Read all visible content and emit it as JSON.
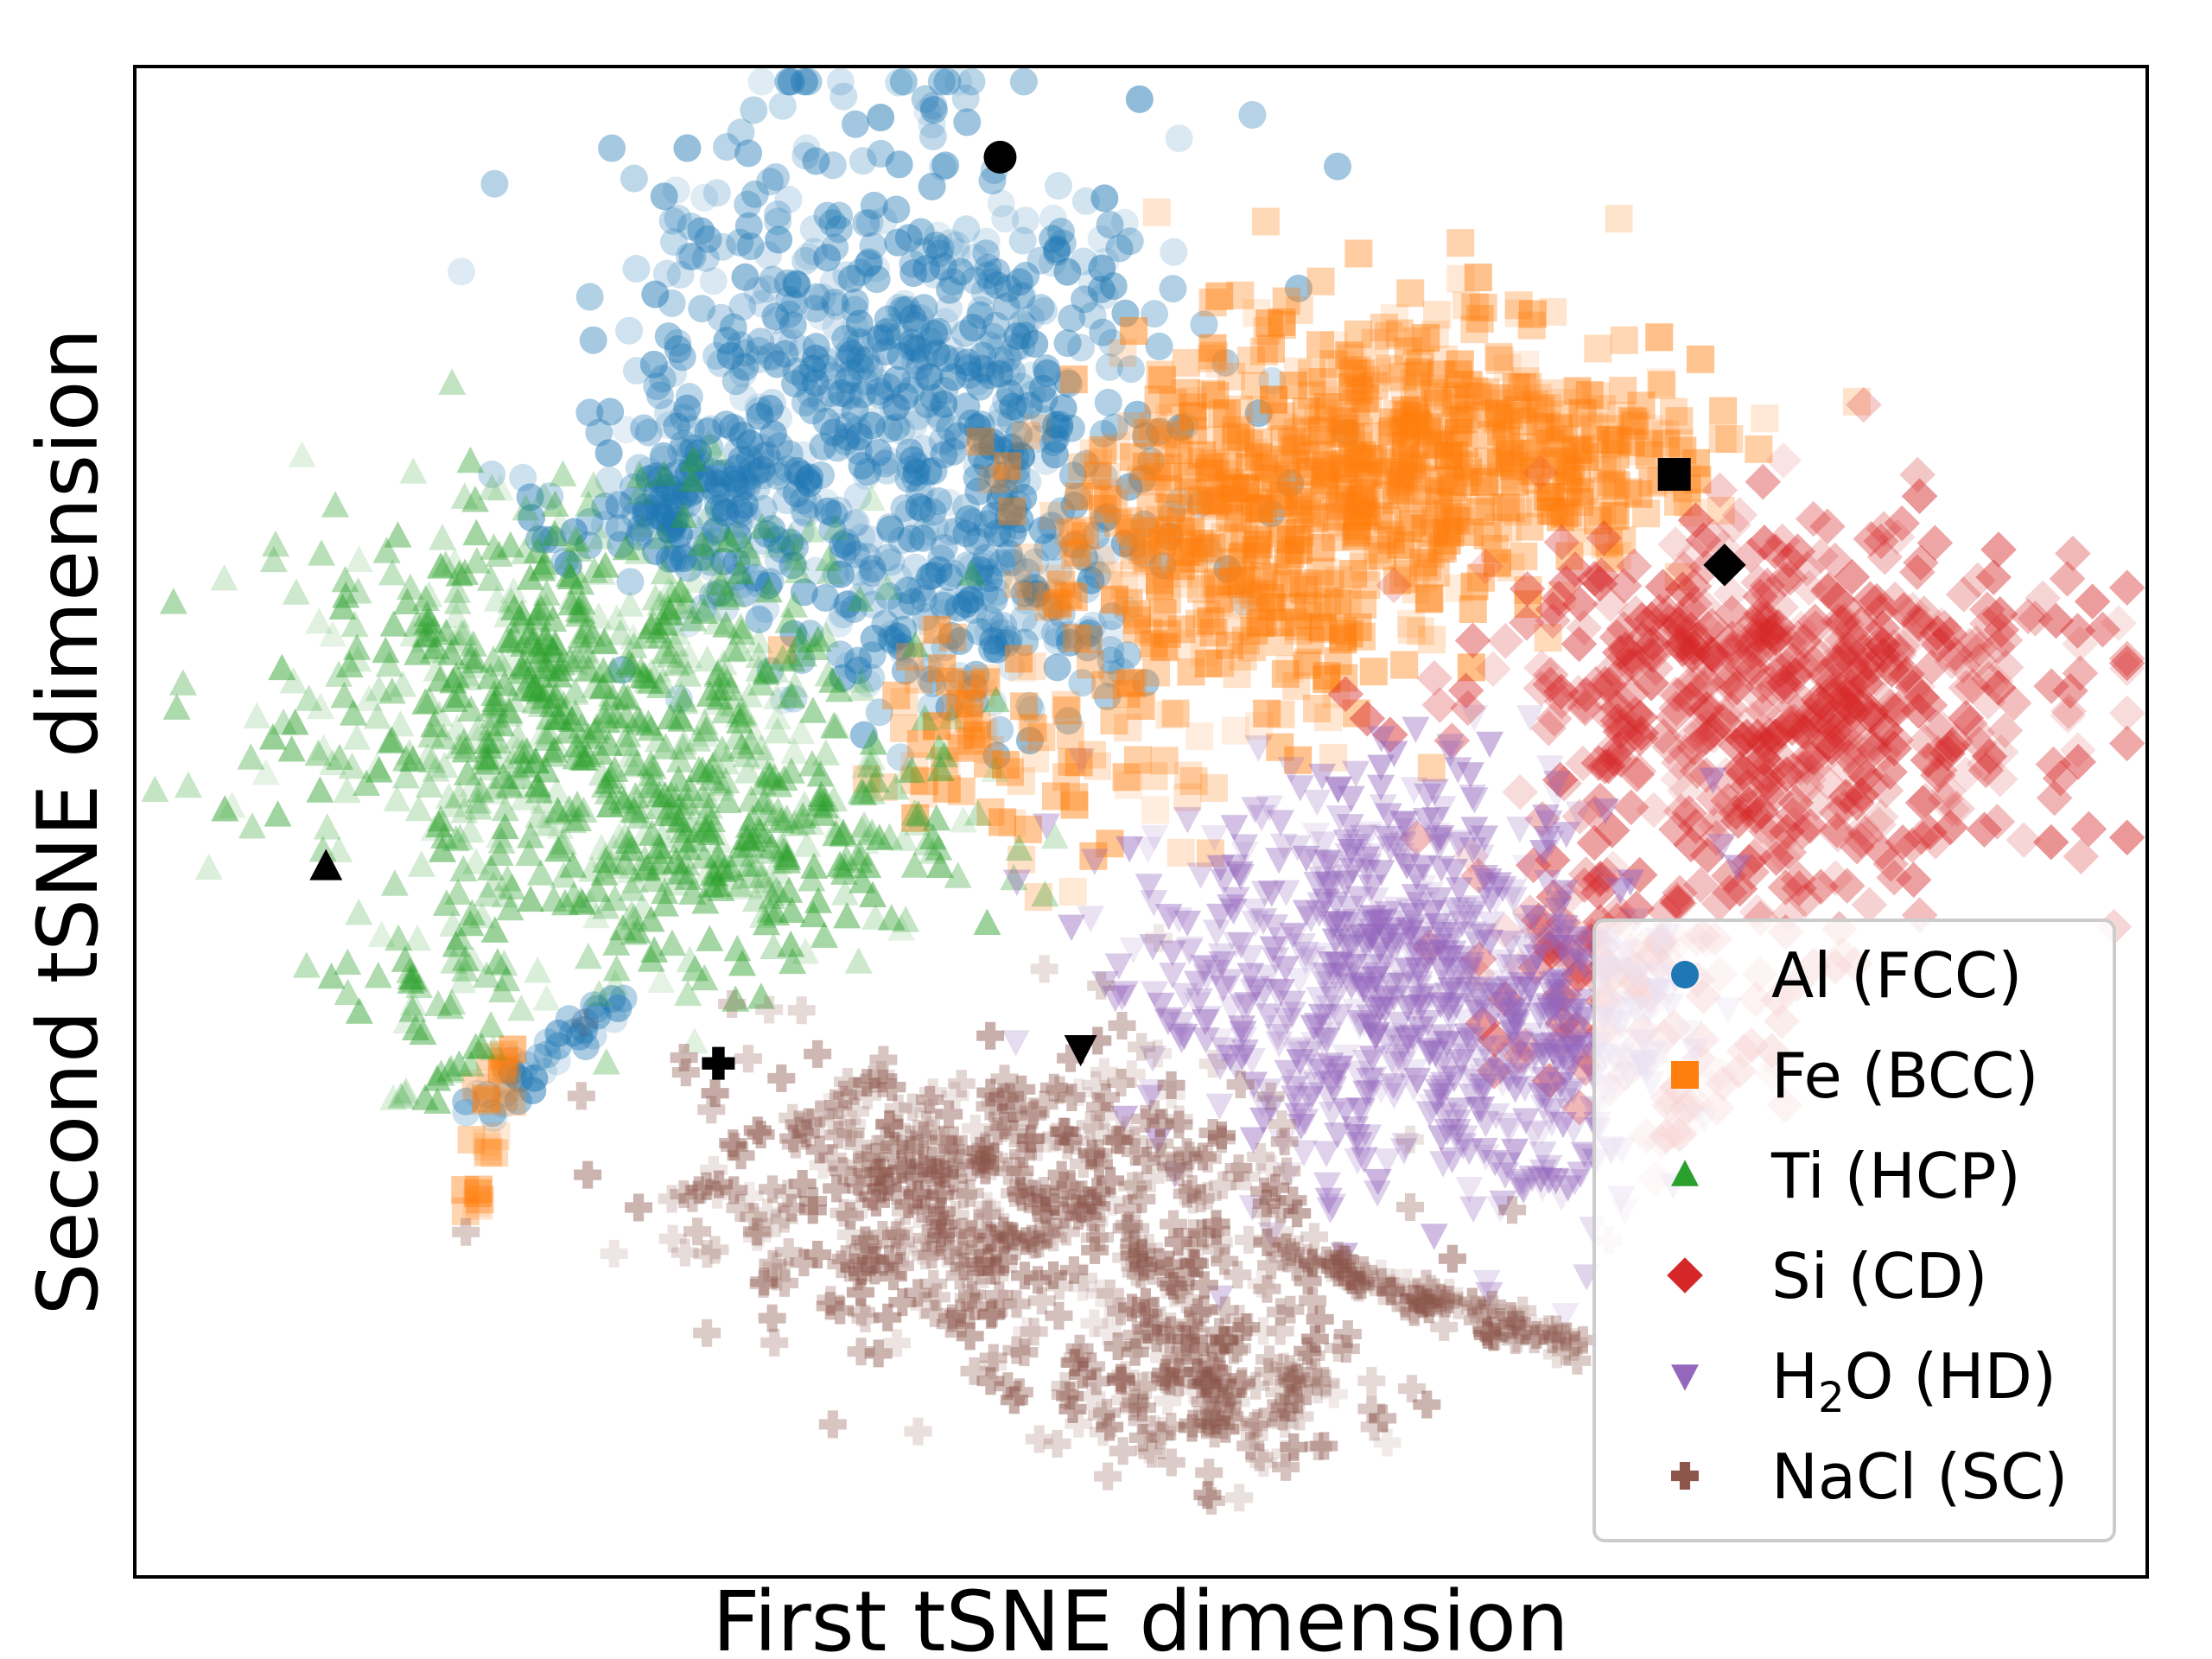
{
  "chart_data": {
    "type": "scatter",
    "title": "",
    "xlabel": "First tSNE dimension",
    "ylabel": "Second tSNE dimension",
    "xlim": [
      0,
      100
    ],
    "ylim": [
      0,
      100
    ],
    "xticks": "none",
    "yticks": "none",
    "grid": false,
    "legend_position": "bottom-right",
    "series": [
      {
        "name": "Al (FCC)",
        "label_main": "Al (FCC)",
        "label_pre": "",
        "label_sub": "",
        "label_post": "",
        "marker": "circle",
        "color": "#1f77b4",
        "clusters": [
          {
            "cx": 38,
            "cy": 79,
            "sx": 7,
            "sy": 9,
            "n": 700
          },
          {
            "cx": 28,
            "cy": 71,
            "sx": 3,
            "sy": 3,
            "n": 150
          },
          {
            "cx": 42,
            "cy": 64,
            "sx": 4,
            "sy": 3,
            "n": 120
          }
        ],
        "trail": {
          "from": [
            17,
            31
          ],
          "to": [
            24,
            38
          ],
          "n": 40
        },
        "representative": {
          "x": 43,
          "y": 94
        }
      },
      {
        "name": "Fe (BCC)",
        "label_main": "Fe (BCC)",
        "label_pre": "",
        "label_sub": "",
        "label_post": "",
        "marker": "square",
        "color": "#ff7f0e",
        "clusters": [
          {
            "cx": 56,
            "cy": 69,
            "sx": 6,
            "sy": 6,
            "n": 450
          },
          {
            "cx": 63,
            "cy": 76,
            "sx": 6,
            "sy": 5,
            "n": 250
          },
          {
            "cx": 71,
            "cy": 74,
            "sx": 5,
            "sy": 3,
            "n": 150
          },
          {
            "cx": 43,
            "cy": 55,
            "sx": 5,
            "sy": 4,
            "n": 90
          }
        ],
        "trail": {
          "from": [
            17,
            24
          ],
          "to": [
            18,
            35
          ],
          "n": 30
        },
        "representative": {
          "x": 76.5,
          "y": 73
        }
      },
      {
        "name": "Ti (HCP)",
        "label_main": "Ti (HCP)",
        "label_pre": "",
        "label_sub": "",
        "label_post": "",
        "marker": "triangle-up",
        "color": "#2ca02c",
        "clusters": [
          {
            "cx": 22,
            "cy": 58,
            "sx": 7,
            "sy": 7,
            "n": 650
          },
          {
            "cx": 30,
            "cy": 48,
            "sx": 6,
            "sy": 4,
            "n": 250
          },
          {
            "cx": 15,
            "cy": 40,
            "sx": 3,
            "sy": 2,
            "n": 40
          }
        ],
        "trail": {
          "from": [
            12,
            30
          ],
          "to": [
            18,
            35
          ],
          "n": 15
        },
        "representative": {
          "x": 9.5,
          "y": 47
        }
      },
      {
        "name": "Si (CD)",
        "label_main": "Si (CD)",
        "label_pre": "",
        "label_sub": "",
        "label_post": "",
        "marker": "diamond",
        "color": "#d62728",
        "clusters": [
          {
            "cx": 82,
            "cy": 58,
            "sx": 7,
            "sy": 6,
            "n": 600
          },
          {
            "cx": 75,
            "cy": 40,
            "sx": 4,
            "sy": 5,
            "n": 120
          }
        ],
        "trail": {
          "from": [
            76,
            28
          ],
          "to": [
            82,
            40
          ],
          "n": 20
        },
        "representative": {
          "x": 79,
          "y": 67
        }
      },
      {
        "name": "H₂O (HD)",
        "label_main": "",
        "label_pre": "H",
        "label_sub": "2",
        "label_post": "O (HD)",
        "marker": "triangle-down",
        "color": "#9467bd",
        "clusters": [
          {
            "cx": 62,
            "cy": 40,
            "sx": 6,
            "sy": 7,
            "n": 650
          },
          {
            "cx": 71,
            "cy": 36,
            "sx": 3,
            "sy": 4,
            "n": 150
          }
        ],
        "trail": {
          "from": [
            66,
            25
          ],
          "to": [
            74,
            28
          ],
          "n": 20
        },
        "representative": {
          "x": 47,
          "y": 35
        }
      },
      {
        "name": "NaCl (SC)",
        "label_main": "NaCl (SC)",
        "label_pre": "",
        "label_sub": "",
        "label_post": "",
        "marker": "plus",
        "color": "#8c564b",
        "clusters": [
          {
            "cx": 43,
            "cy": 25,
            "sx": 8,
            "sy": 5,
            "n": 500
          },
          {
            "cx": 53,
            "cy": 13,
            "sx": 4,
            "sy": 3,
            "n": 200
          }
        ],
        "trail": {
          "from": [
            56,
            22
          ],
          "to": [
            72,
            15
          ],
          "n": 100
        },
        "representative": {
          "x": 29,
          "y": 34
        }
      }
    ]
  }
}
